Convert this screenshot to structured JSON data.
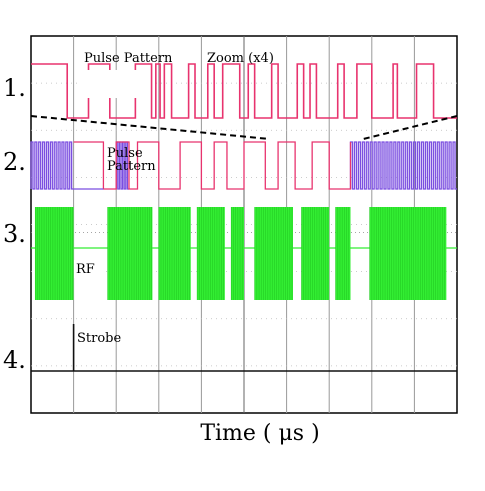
{
  "chart_data": {
    "type": "line",
    "title": "",
    "xlabel": "Time ( μs )",
    "ylabel": "",
    "grid": true,
    "grid_divisions": {
      "x": 10,
      "y": 8
    },
    "annotations": {
      "zoom": "Zoom (x4)",
      "pulse_pattern_top": "Pulse Pattern",
      "pulse_pattern_ch2_line1": "Pulse",
      "pulse_pattern_ch2_line2": "Pattern",
      "rf": "RF",
      "strobe": "Strobe"
    },
    "channels": [
      {
        "label": "1.",
        "color": "#e8336e",
        "kind": "digital",
        "levels": [
          1,
          0
        ],
        "edges": [
          0,
          0.085,
          0.135,
          0.185,
          0.245,
          0.283,
          0.293,
          0.303,
          0.313,
          0.33,
          0.37,
          0.385,
          0.415,
          0.43,
          0.45,
          0.49,
          0.51,
          0.525,
          0.565,
          0.58,
          0.625,
          0.64,
          0.655,
          0.67,
          0.72,
          0.735,
          0.765,
          0.8,
          0.85,
          0.86,
          0.905,
          0.945,
          1.0
        ]
      },
      {
        "label": "2.",
        "color": "#7a4de0",
        "kind": "pattern",
        "color_alt": "#e8336e",
        "dense_regions": [
          [
            0.0,
            0.1
          ],
          [
            0.2,
            0.23
          ],
          [
            0.75,
            1.0
          ]
        ],
        "edges": [
          0.1,
          0.17,
          0.2,
          0.23,
          0.25,
          0.3,
          0.35,
          0.4,
          0.43,
          0.46,
          0.5,
          0.55,
          0.58,
          0.62,
          0.66,
          0.7,
          0.75
        ]
      },
      {
        "label": "3.",
        "color": "#33ee33",
        "kind": "rf",
        "bursts": [
          [
            0.01,
            0.1
          ],
          [
            0.18,
            0.285
          ],
          [
            0.3,
            0.375
          ],
          [
            0.39,
            0.455
          ],
          [
            0.47,
            0.5
          ],
          [
            0.525,
            0.615
          ],
          [
            0.635,
            0.7
          ],
          [
            0.715,
            0.75
          ],
          [
            0.795,
            0.975
          ]
        ]
      },
      {
        "label": "4.",
        "color": "#111111",
        "kind": "strobe",
        "pulse_at": 0.1
      }
    ]
  }
}
